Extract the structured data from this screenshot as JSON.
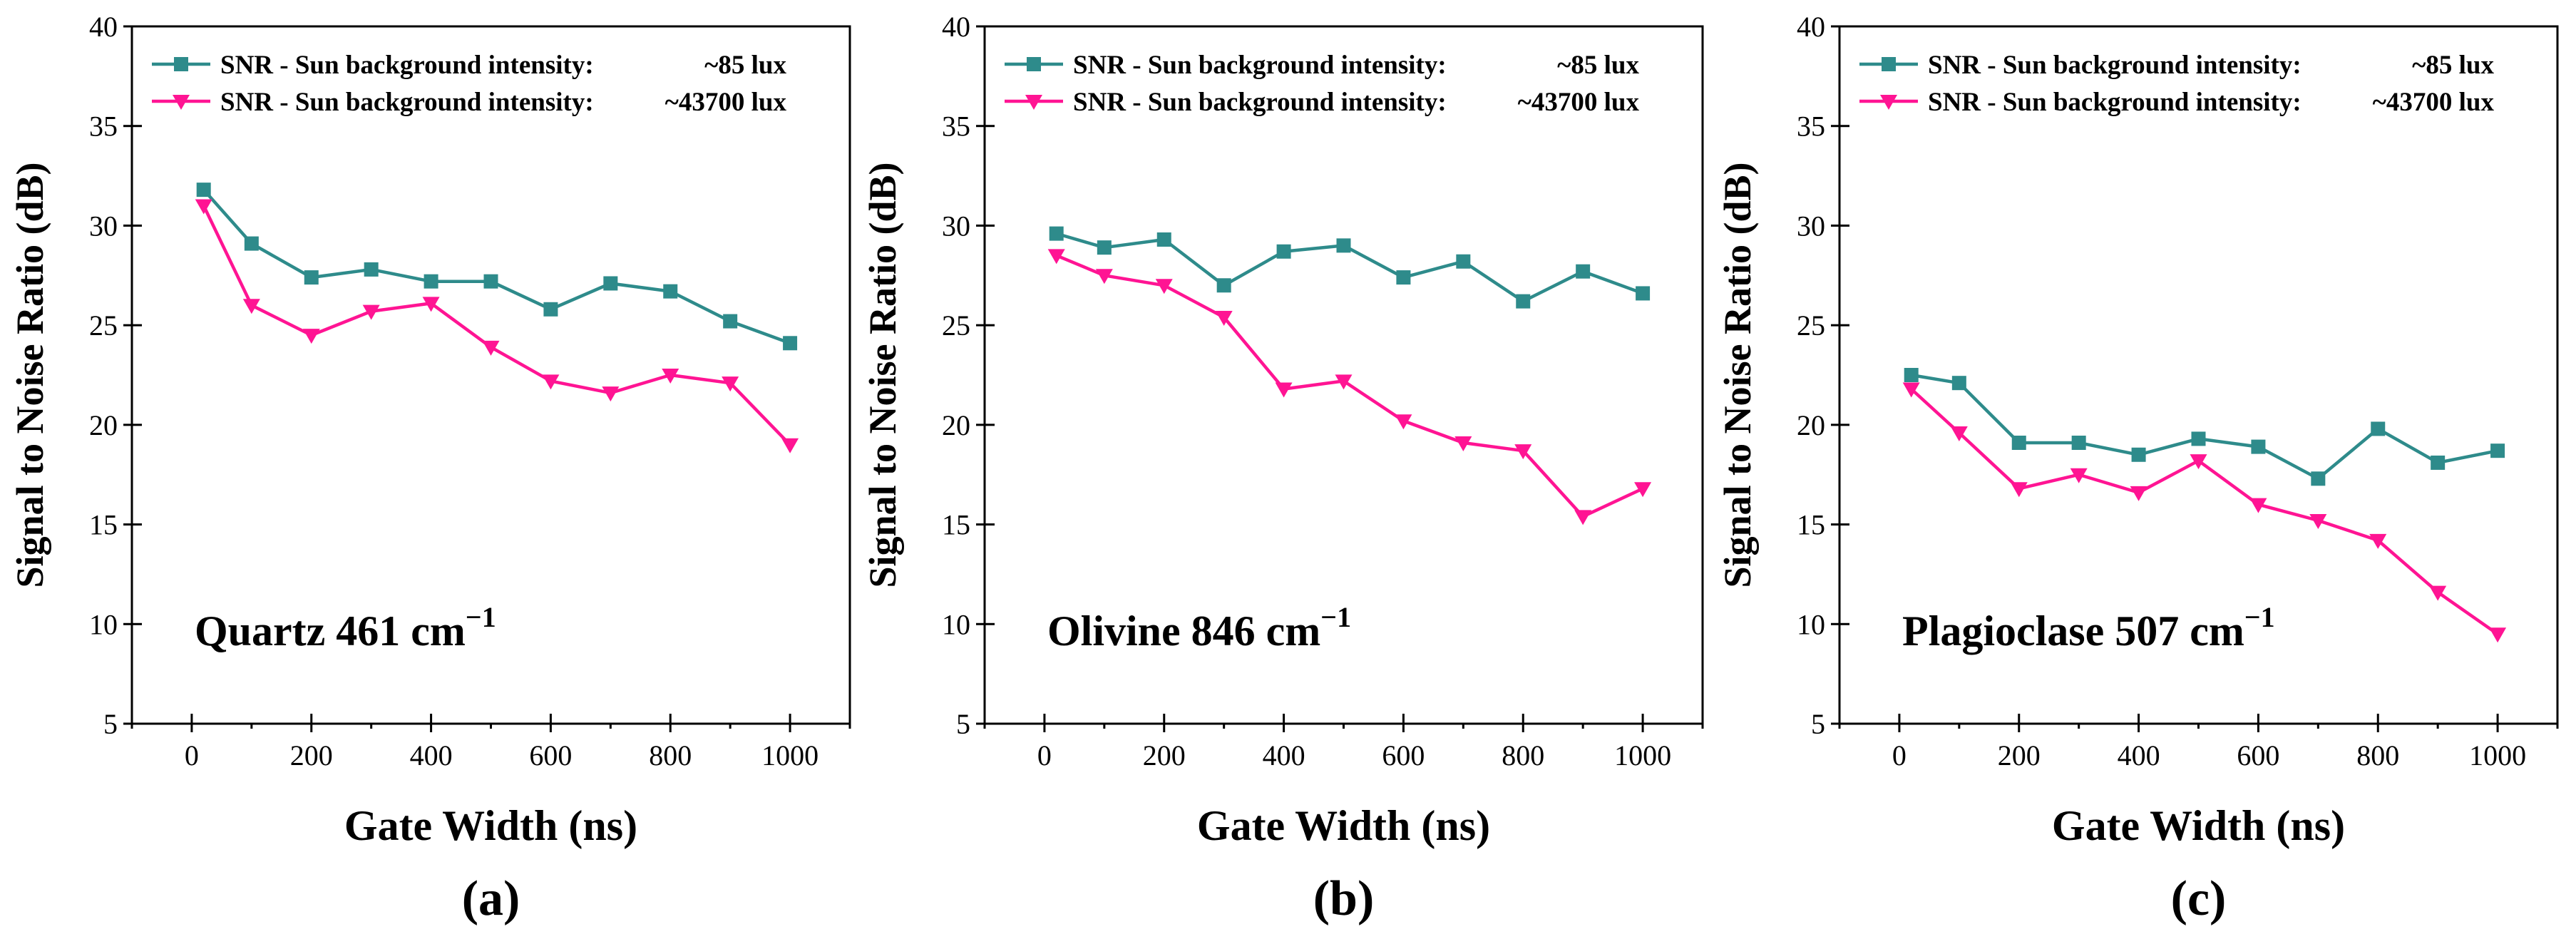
{
  "colors": {
    "series_low": "#2e8b8b",
    "series_high": "#ff1493",
    "axis": "#000000",
    "background": "#ffffff"
  },
  "chart_data": [
    {
      "type": "line",
      "panel_label": "(a)",
      "annotation": "Quartz 461 cm",
      "annotation_exponent": "−1",
      "xlabel": "Gate Width (ns)",
      "ylabel": "Signal to Noise Ratio (dB)",
      "xlim": [
        -100,
        1100
      ],
      "ylim": [
        5,
        40
      ],
      "xticks": [
        0,
        200,
        400,
        600,
        800,
        1000
      ],
      "yticks": [
        5,
        10,
        15,
        20,
        25,
        30,
        35,
        40
      ],
      "x": [
        20,
        100,
        200,
        300,
        400,
        500,
        600,
        700,
        800,
        900,
        1000
      ],
      "legend_position": "top-left",
      "series": [
        {
          "name": "SNR - Sun background intensity:",
          "suffix": "~85 lux",
          "marker": "square",
          "color": "#2e8b8b",
          "values": [
            31.8,
            29.1,
            27.4,
            27.8,
            27.2,
            27.2,
            25.8,
            27.1,
            26.7,
            25.2,
            24.1
          ]
        },
        {
          "name": "SNR - Sun background intensity:",
          "suffix": "~43700 lux",
          "marker": "triangle-down",
          "color": "#ff1493",
          "values": [
            31.0,
            26.0,
            24.5,
            25.7,
            26.1,
            23.9,
            22.2,
            21.6,
            22.5,
            22.1,
            19.0
          ]
        }
      ]
    },
    {
      "type": "line",
      "panel_label": "(b)",
      "annotation": "Olivine 846 cm",
      "annotation_exponent": "−1",
      "xlabel": "Gate Width (ns)",
      "ylabel": "Signal to Noise Ratio (dB)",
      "xlim": [
        -100,
        1100
      ],
      "ylim": [
        5,
        40
      ],
      "xticks": [
        0,
        200,
        400,
        600,
        800,
        1000
      ],
      "yticks": [
        5,
        10,
        15,
        20,
        25,
        30,
        35,
        40
      ],
      "x": [
        20,
        100,
        200,
        300,
        400,
        500,
        600,
        700,
        800,
        900,
        1000
      ],
      "legend_position": "top-left",
      "series": [
        {
          "name": "SNR - Sun background intensity:",
          "suffix": "~85 lux",
          "marker": "square",
          "color": "#2e8b8b",
          "values": [
            29.6,
            28.9,
            29.3,
            27.0,
            28.7,
            29.0,
            27.4,
            28.2,
            26.2,
            27.7,
            26.6
          ]
        },
        {
          "name": "SNR - Sun background intensity:",
          "suffix": "~43700 lux",
          "marker": "triangle-down",
          "color": "#ff1493",
          "values": [
            28.5,
            27.5,
            27.0,
            25.4,
            21.8,
            22.2,
            20.2,
            19.1,
            18.7,
            15.4,
            16.8
          ]
        }
      ]
    },
    {
      "type": "line",
      "panel_label": "(c)",
      "annotation": "Plagioclase 507 cm",
      "annotation_exponent": "−1",
      "xlabel": "Gate Width (ns)",
      "ylabel": "Signal to Noise Ratio (dB)",
      "xlim": [
        -100,
        1100
      ],
      "ylim": [
        5,
        40
      ],
      "xticks": [
        0,
        200,
        400,
        600,
        800,
        1000
      ],
      "yticks": [
        5,
        10,
        15,
        20,
        25,
        30,
        35,
        40
      ],
      "x": [
        20,
        100,
        200,
        300,
        400,
        500,
        600,
        700,
        800,
        900,
        1000
      ],
      "legend_position": "top-left",
      "series": [
        {
          "name": "SNR - Sun background intensity:",
          "suffix": "~85 lux",
          "marker": "square",
          "color": "#2e8b8b",
          "values": [
            22.5,
            22.1,
            19.1,
            19.1,
            18.5,
            19.3,
            18.9,
            17.3,
            19.8,
            18.1,
            18.7
          ]
        },
        {
          "name": "SNR - Sun background intensity:",
          "suffix": "~43700 lux",
          "marker": "triangle-down",
          "color": "#ff1493",
          "values": [
            21.8,
            19.6,
            16.8,
            17.5,
            16.6,
            18.2,
            16.0,
            15.2,
            14.2,
            11.6,
            9.5
          ]
        }
      ]
    }
  ]
}
